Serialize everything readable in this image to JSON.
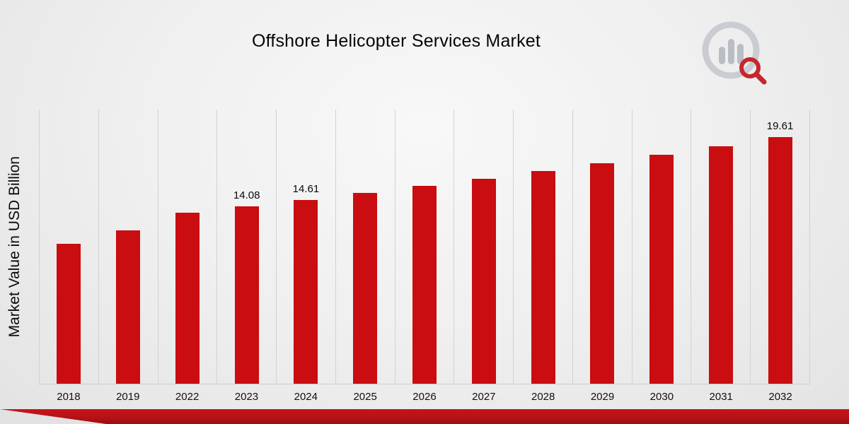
{
  "title": "Offshore Helicopter Services Market",
  "ylabel": "Market Value in USD Billion",
  "logo": {
    "name": "chart-magnifier-logo",
    "ring_color": "#c6c9cf",
    "accent_color": "#c0121a"
  },
  "footer": {
    "accent_color": "#b30e12"
  },
  "chart_data": {
    "type": "bar",
    "title": "Offshore Helicopter Services Market",
    "xlabel": "",
    "ylabel": "Market Value in USD Billion",
    "categories": [
      "2018",
      "2019",
      "2022",
      "2023",
      "2024",
      "2025",
      "2026",
      "2027",
      "2028",
      "2029",
      "2030",
      "2031",
      "2032"
    ],
    "values": [
      11.15,
      12.18,
      13.62,
      14.08,
      14.61,
      15.16,
      15.72,
      16.31,
      16.92,
      17.55,
      18.21,
      18.89,
      19.61
    ],
    "value_labels": [
      "",
      "",
      "",
      "14.08",
      "14.61",
      "",
      "",
      "",
      "",
      "",
      "",
      "",
      "19.61"
    ],
    "bar_color": "#c90d10",
    "ylim": [
      0,
      21.8
    ],
    "grid": "vertical",
    "legend": "none"
  }
}
